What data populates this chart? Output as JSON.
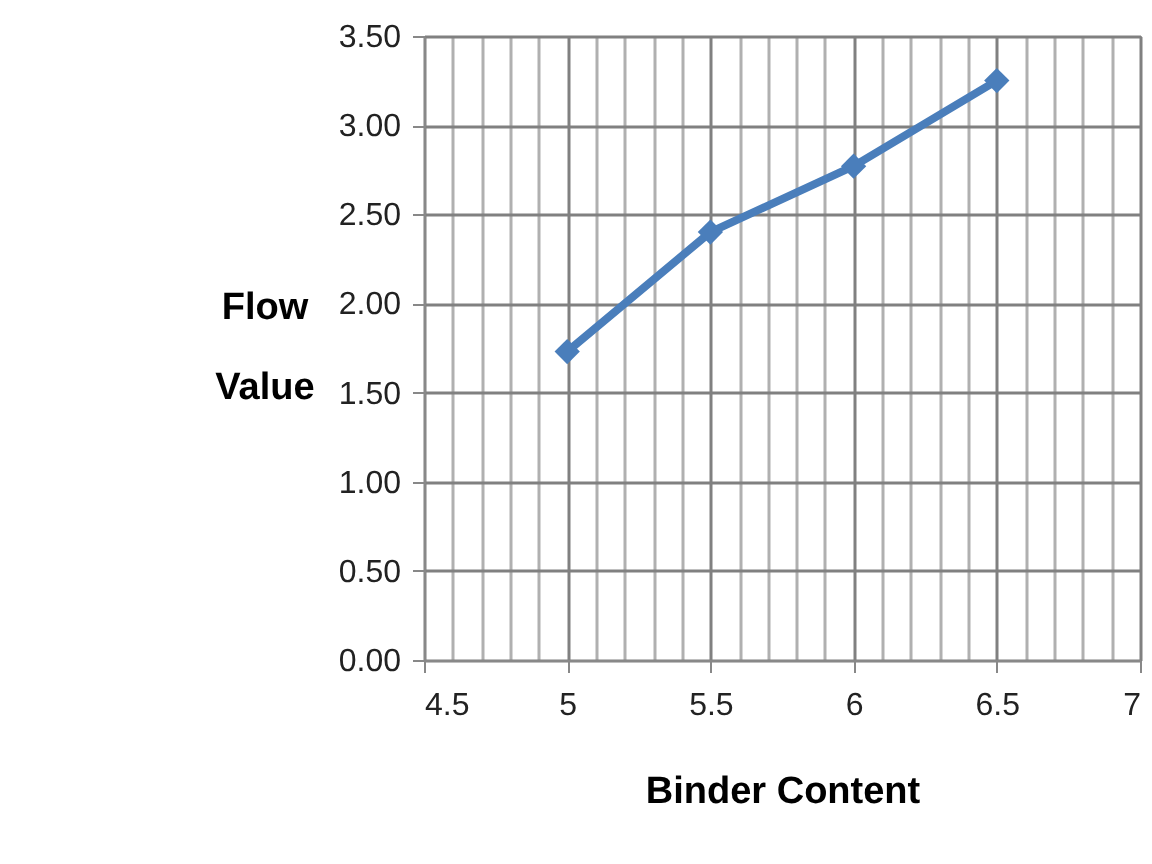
{
  "chart_data": {
    "type": "line",
    "xlabel": "Binder Content",
    "ylabel": "Flow Value",
    "x": [
      5,
      5.5,
      6,
      6.5
    ],
    "series": [
      {
        "color": "#4a7ebb",
        "values": [
          1.73,
          2.4,
          2.77,
          3.25
        ]
      }
    ],
    "xlim": [
      4.5,
      7
    ],
    "ylim": [
      0,
      3.5
    ],
    "xticks": [
      {
        "value": 4.5,
        "label": "4.5"
      },
      {
        "value": 4.6,
        "label": null
      },
      {
        "value": 4.7,
        "label": null
      },
      {
        "value": 4.8,
        "label": null
      },
      {
        "value": 4.9,
        "label": null
      },
      {
        "value": 5,
        "label": "5"
      },
      {
        "value": 5.1,
        "label": null
      },
      {
        "value": 5.2,
        "label": null
      },
      {
        "value": 5.3,
        "label": null
      },
      {
        "value": 5.4,
        "label": null
      },
      {
        "value": 5.5,
        "label": "5.5"
      },
      {
        "value": 5.6,
        "label": null
      },
      {
        "value": 5.7,
        "label": null
      },
      {
        "value": 5.8,
        "label": null
      },
      {
        "value": 5.9,
        "label": null
      },
      {
        "value": 6,
        "label": "6"
      },
      {
        "value": 6.1,
        "label": null
      },
      {
        "value": 6.2,
        "label": null
      },
      {
        "value": 6.3,
        "label": null
      },
      {
        "value": 6.4,
        "label": null
      },
      {
        "value": 6.5,
        "label": "6.5"
      },
      {
        "value": 6.6,
        "label": null
      },
      {
        "value": 6.7,
        "label": null
      },
      {
        "value": 6.8,
        "label": null
      },
      {
        "value": 6.9,
        "label": null
      },
      {
        "value": 7,
        "label": "7"
      }
    ],
    "yticks": [
      {
        "value": 0,
        "label": "0.00"
      },
      {
        "value": 0.5,
        "label": "0.50"
      },
      {
        "value": 1,
        "label": "1.00"
      },
      {
        "value": 1.5,
        "label": "1.50"
      },
      {
        "value": 2,
        "label": "2.00"
      },
      {
        "value": 2.5,
        "label": "2.50"
      },
      {
        "value": 3,
        "label": "3.00"
      },
      {
        "value": 3.5,
        "label": "3.50"
      }
    ],
    "grid": true,
    "marker": "diamond",
    "line_style": "solid"
  }
}
